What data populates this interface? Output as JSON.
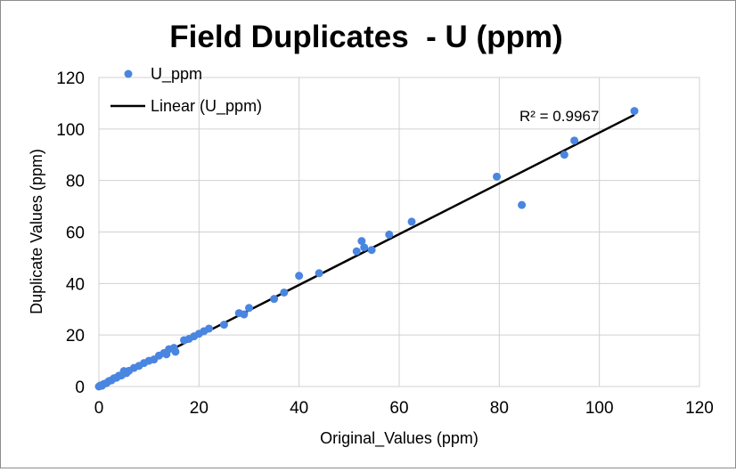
{
  "chart_data": {
    "type": "scatter",
    "title": "Field Duplicates  - U (ppm)",
    "xlabel": "Original_Values (ppm)",
    "ylabel": "Duplicate Values (ppm)",
    "xlim": [
      0,
      120
    ],
    "ylim": [
      0,
      120
    ],
    "xticks": [
      "0",
      "20",
      "40",
      "60",
      "80",
      "100",
      "120"
    ],
    "yticks": [
      "0",
      "20",
      "40",
      "60",
      "80",
      "100",
      "120"
    ],
    "grid": true,
    "legend_position": "top-left",
    "series": [
      {
        "name": "U_ppm",
        "color": "#4a86e0",
        "points": [
          [
            0,
            0
          ],
          [
            0.3,
            0.4
          ],
          [
            0.6,
            0.3
          ],
          [
            1,
            1
          ],
          [
            1.5,
            1.3
          ],
          [
            2,
            2.1
          ],
          [
            2.5,
            2.4
          ],
          [
            3,
            3.2
          ],
          [
            3.5,
            3.4
          ],
          [
            4,
            4.2
          ],
          [
            4.5,
            4.3
          ],
          [
            5,
            6
          ],
          [
            5.5,
            5.2
          ],
          [
            6,
            6.1
          ],
          [
            7,
            7.2
          ],
          [
            8,
            8
          ],
          [
            9,
            9.1
          ],
          [
            10,
            10
          ],
          [
            11,
            10.5
          ],
          [
            12,
            12
          ],
          [
            13,
            13
          ],
          [
            13.5,
            12.5
          ],
          [
            14,
            14.5
          ],
          [
            15,
            15
          ],
          [
            15.3,
            13.5
          ],
          [
            17,
            18
          ],
          [
            18,
            18.5
          ],
          [
            19,
            19.5
          ],
          [
            20,
            20.5
          ],
          [
            21,
            21.5
          ],
          [
            22,
            22.5
          ],
          [
            25,
            24
          ],
          [
            28,
            28.5
          ],
          [
            29,
            28
          ],
          [
            30,
            30.5
          ],
          [
            35,
            34
          ],
          [
            37,
            36.5
          ],
          [
            40,
            43
          ],
          [
            44,
            44
          ],
          [
            51.5,
            52.5
          ],
          [
            52.5,
            56.5
          ],
          [
            53,
            54
          ],
          [
            54.5,
            53
          ],
          [
            58,
            59
          ],
          [
            62.5,
            64
          ],
          [
            79.5,
            81.5
          ],
          [
            84.5,
            70.5
          ],
          [
            93,
            90
          ],
          [
            95,
            95.5
          ],
          [
            107,
            107
          ]
        ]
      }
    ],
    "trendline": {
      "name": "Linear (U_ppm)",
      "color": "#000000",
      "x": [
        0,
        107
      ],
      "y": [
        0,
        105.5
      ]
    },
    "annotation": "R² = 0.9967"
  }
}
